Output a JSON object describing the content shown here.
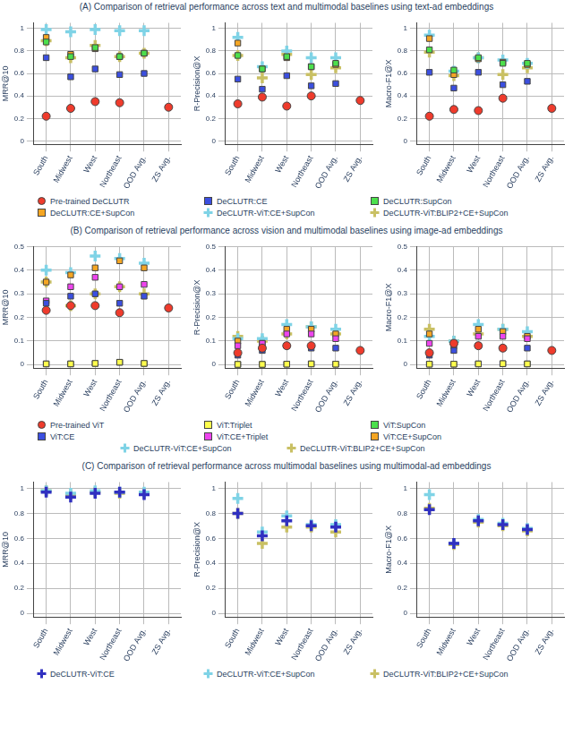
{
  "chart_data": [
    {
      "type": "scatter",
      "title": "(A) Comparison of retrieval performance across text and multimodal baselines using text-ad embeddings",
      "categories": [
        "South",
        "Midwest",
        "West",
        "Northeast",
        "OOD Avg.",
        "ZS Avg."
      ],
      "ylim": [
        -0.03,
        1.05
      ],
      "yticks": [
        0,
        0.2,
        0.4,
        0.6,
        0.8,
        1
      ],
      "grid": true,
      "series": [
        {
          "name": "Pre-trained DeCLUTR",
          "color": "#ef3b2c",
          "marker": "circle"
        },
        {
          "name": "DeCLUTR:CE",
          "color": "#3b4fe0",
          "marker": "square"
        },
        {
          "name": "DeCLUTR:SupCon",
          "color": "#4ce04c",
          "marker": "square"
        },
        {
          "name": "DeCLUTR:CE+SupCon",
          "color": "#f5a623",
          "marker": "square"
        },
        {
          "name": "DeCLUTR-ViT:CE+SupCon",
          "color": "#7fd3e6",
          "marker": "cross"
        },
        {
          "name": "DeCLUTR-ViT:BLIP2+CE+SupCon",
          "color": "#c9c064",
          "marker": "cross"
        }
      ],
      "panels": [
        {
          "y_label": "MRR@10",
          "values": [
            [
              0.22,
              0.29,
              0.35,
              0.34,
              null,
              0.3
            ],
            [
              0.74,
              0.57,
              0.64,
              0.59,
              0.6,
              null
            ],
            [
              0.88,
              0.75,
              0.83,
              0.75,
              0.78,
              null
            ],
            [
              0.92,
              0.77,
              0.82,
              0.75,
              0.78,
              null
            ],
            [
              0.99,
              0.97,
              0.99,
              0.98,
              0.98,
              null
            ],
            [
              0.89,
              0.74,
              0.85,
              0.75,
              0.78,
              null
            ]
          ]
        },
        {
          "y_label": "R-Precision@X",
          "values": [
            [
              0.33,
              0.39,
              0.31,
              0.4,
              null,
              0.36
            ],
            [
              0.55,
              0.46,
              0.58,
              0.49,
              0.51,
              null
            ],
            [
              0.76,
              0.64,
              0.75,
              0.66,
              0.69,
              null
            ],
            [
              0.87,
              0.64,
              0.74,
              0.66,
              0.68,
              null
            ],
            [
              0.92,
              0.66,
              0.8,
              0.74,
              0.74,
              null
            ],
            [
              0.76,
              0.56,
              0.77,
              0.59,
              0.65,
              null
            ]
          ]
        },
        {
          "y_label": "Macro-F1@X",
          "values": [
            [
              0.22,
              0.28,
              0.27,
              0.38,
              null,
              0.29
            ],
            [
              0.61,
              0.47,
              0.61,
              0.5,
              0.53,
              null
            ],
            [
              0.81,
              0.63,
              0.74,
              0.69,
              0.69,
              null
            ],
            [
              0.91,
              0.59,
              0.73,
              0.7,
              0.68,
              null
            ],
            [
              0.94,
              0.62,
              0.74,
              0.72,
              0.69,
              null
            ],
            [
              0.79,
              0.58,
              0.74,
              0.59,
              0.65,
              null
            ]
          ]
        }
      ]
    },
    {
      "type": "scatter",
      "title": "(B) Comparison of retrieval performance across vision and multimodal baselines using image-ad embeddings",
      "categories": [
        "South",
        "Midwest",
        "West",
        "Northeast",
        "OOD Avg.",
        "ZS Avg."
      ],
      "ylim": [
        -0.015,
        0.5
      ],
      "yticks": [
        0,
        0.1,
        0.2,
        0.3,
        0.4,
        0.5
      ],
      "grid": true,
      "series": [
        {
          "name": "Pre-trained ViT",
          "color": "#ef3b2c",
          "marker": "circle"
        },
        {
          "name": "ViT:Triplet",
          "color": "#ffff4d",
          "marker": "square"
        },
        {
          "name": "ViT:SupCon",
          "color": "#4ce04c",
          "marker": "square"
        },
        {
          "name": "ViT:CE",
          "color": "#3b4fe0",
          "marker": "square"
        },
        {
          "name": "ViT:CE+Triplet",
          "color": "#ee44ee",
          "marker": "square"
        },
        {
          "name": "ViT:CE+SupCon",
          "color": "#f5a623",
          "marker": "square"
        },
        {
          "name": "DeCLUTR-ViT:CE+SupCon",
          "color": "#7fd3e6",
          "marker": "cross"
        },
        {
          "name": "DeCLUTR-ViT:BLIP2+CE+SupCon",
          "color": "#c9c064",
          "marker": "cross"
        }
      ],
      "panels": [
        {
          "y_label": "MRR@10",
          "values": [
            [
              0.23,
              0.25,
              0.25,
              0.22,
              null,
              0.24
            ],
            [
              0.003,
              0.003,
              0.005,
              0.01,
              0.005,
              null
            ],
            [
              0.003,
              0.003,
              0.005,
              0.01,
              0.005,
              null
            ],
            [
              0.26,
              0.29,
              0.3,
              0.26,
              0.29,
              null
            ],
            [
              0.27,
              0.33,
              0.37,
              0.33,
              0.34,
              null
            ],
            [
              0.35,
              0.38,
              0.41,
              0.44,
              0.41,
              null
            ],
            [
              0.4,
              0.39,
              0.46,
              0.45,
              0.43,
              null
            ],
            [
              0.35,
              0.25,
              0.3,
              0.33,
              0.3,
              null
            ]
          ]
        },
        {
          "y_label": "R-Precision@X",
          "values": [
            [
              0.05,
              0.07,
              0.08,
              0.08,
              null,
              0.06
            ],
            [
              0.001,
              0.001,
              0.002,
              0.003,
              0.002,
              null
            ],
            [
              0.001,
              0.001,
              0.002,
              0.003,
              0.002,
              null
            ],
            [
              0.04,
              0.06,
              0.08,
              0.07,
              0.07,
              null
            ],
            [
              0.08,
              0.09,
              0.13,
              0.13,
              0.11,
              null
            ],
            [
              0.1,
              0.09,
              0.15,
              0.15,
              0.13,
              null
            ],
            [
              0.11,
              0.11,
              0.17,
              0.16,
              0.15,
              null
            ],
            [
              0.12,
              0.1,
              0.13,
              0.16,
              0.13,
              null
            ]
          ]
        },
        {
          "y_label": "Macro-F1@X",
          "values": [
            [
              0.05,
              0.09,
              0.08,
              0.07,
              null,
              0.06
            ],
            [
              0.002,
              0.002,
              0.003,
              0.004,
              0.003,
              null
            ],
            [
              0.002,
              0.002,
              0.003,
              0.004,
              0.003,
              null
            ],
            [
              0.04,
              0.06,
              0.08,
              0.07,
              0.07,
              null
            ],
            [
              0.09,
              0.08,
              0.12,
              0.12,
              0.11,
              null
            ],
            [
              0.13,
              0.09,
              0.15,
              0.14,
              0.12,
              null
            ],
            [
              0.12,
              0.1,
              0.17,
              0.15,
              0.14,
              null
            ],
            [
              0.15,
              0.1,
              0.13,
              0.15,
              0.12,
              null
            ]
          ]
        }
      ]
    },
    {
      "type": "scatter",
      "title": "(C) Comparison of retrieval performance across multimodal baselines using multimodal-ad embeddings",
      "categories": [
        "South",
        "Midwest",
        "West",
        "Northeast",
        "OOD Avg.",
        "ZS Avg."
      ],
      "ylim": [
        -0.03,
        1.05
      ],
      "yticks": [
        0,
        0.2,
        0.4,
        0.6,
        0.8,
        1
      ],
      "grid": true,
      "series": [
        {
          "name": "DeCLUTR-ViT:CE",
          "color": "#3030c0",
          "marker": "cross"
        },
        {
          "name": "DeCLUTR-ViT:CE+SupCon",
          "color": "#7fd3e6",
          "marker": "cross"
        },
        {
          "name": "DeCLUTR-ViT:BLIP2+CE+SupCon",
          "color": "#c9c064",
          "marker": "cross"
        }
      ],
      "panels": [
        {
          "y_label": "MRR@10",
          "values": [
            [
              0.97,
              0.93,
              0.96,
              0.97,
              0.95,
              null
            ],
            [
              0.98,
              0.96,
              0.98,
              0.97,
              0.97,
              null
            ],
            [
              0.98,
              0.95,
              0.97,
              0.96,
              0.96,
              null
            ]
          ]
        },
        {
          "y_label": "R-Precision@X",
          "values": [
            [
              0.8,
              0.62,
              0.74,
              0.7,
              0.69,
              null
            ],
            [
              0.92,
              0.65,
              0.78,
              0.71,
              0.71,
              null
            ],
            [
              0.8,
              0.56,
              0.69,
              0.69,
              0.65,
              null
            ]
          ]
        },
        {
          "y_label": "Macro-F1@X",
          "values": [
            [
              0.83,
              0.56,
              0.74,
              0.71,
              0.67,
              null
            ],
            [
              0.95,
              0.56,
              0.75,
              0.72,
              0.68,
              null
            ],
            [
              0.84,
              0.55,
              0.73,
              0.7,
              0.66,
              null
            ]
          ]
        }
      ]
    }
  ]
}
